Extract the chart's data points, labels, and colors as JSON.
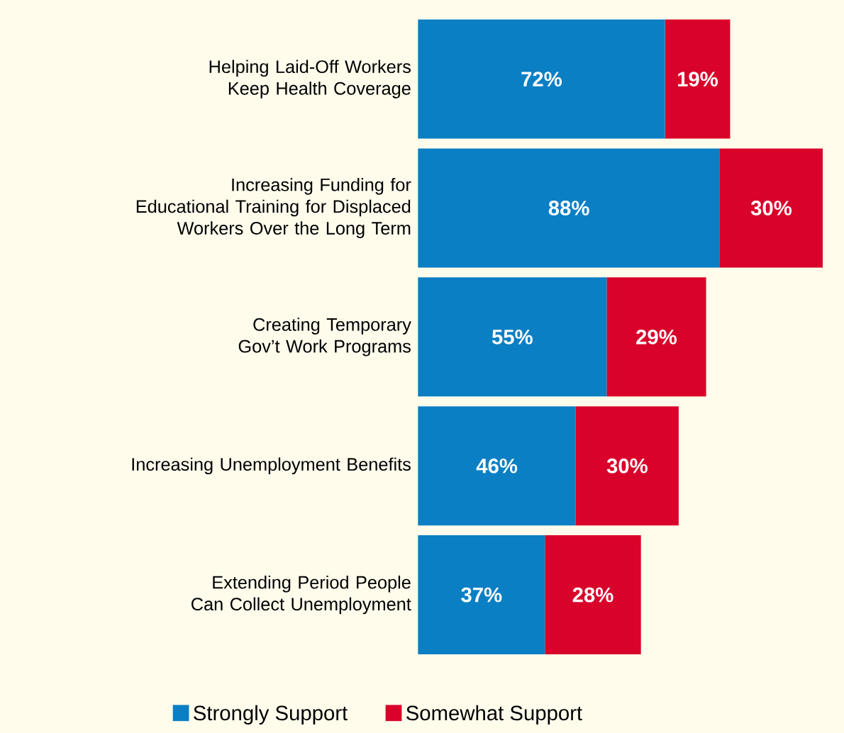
{
  "chart_data": {
    "type": "bar",
    "orientation": "horizontal",
    "stacked": true,
    "legend": "bottom",
    "categories": [
      "Helping Laid-Off Workers Keep Health Coverage",
      "Increasing Funding for Educational Training for Displaced Workers Over the Long Term",
      "Creating Temporary Gov’t Work Programs",
      "Increasing Unemployment Benefits",
      "Extending Period People Can Collect Unemployment"
    ],
    "series": [
      {
        "name": "Strongly Support",
        "color": "#0a7fc4",
        "values": [
          72,
          88,
          55,
          46,
          37
        ],
        "value_labels": [
          "72%",
          "88%",
          "55%",
          "46%",
          "37%"
        ]
      },
      {
        "name": "Somewhat Support",
        "color": "#d9022a",
        "values": [
          19,
          30,
          29,
          30,
          28
        ],
        "value_labels": [
          "19%",
          "30%",
          "29%",
          "30%",
          "28%"
        ]
      }
    ]
  }
}
